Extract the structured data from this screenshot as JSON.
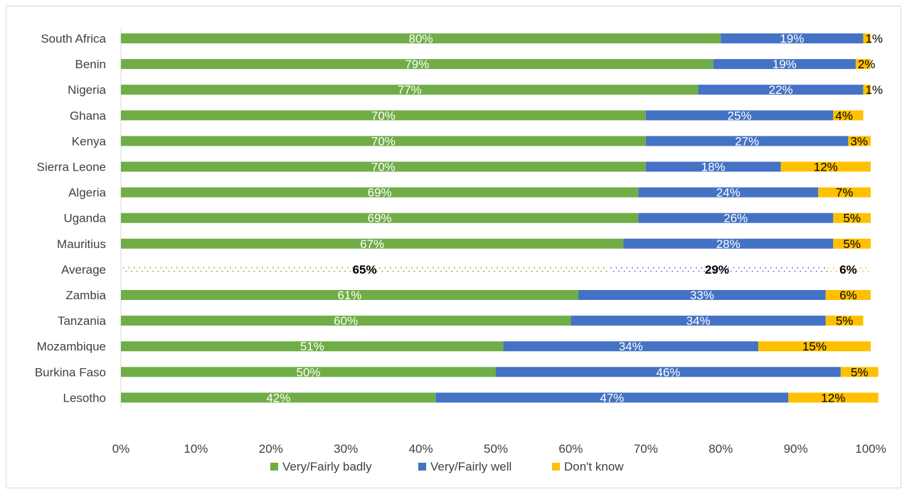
{
  "chart_data": {
    "type": "bar",
    "orientation": "horizontal",
    "stacked": true,
    "categories": [
      "South Africa",
      "Benin",
      "Nigeria",
      "Ghana",
      "Kenya",
      "Sierra Leone",
      "Algeria",
      "Uganda",
      "Mauritius",
      "Average",
      "Zambia",
      "Tanzania",
      "Mozambique",
      "Burkina Faso",
      "Lesotho"
    ],
    "series": [
      {
        "name": "Very/Fairly badly",
        "color": "#70ad47",
        "values": [
          80,
          79,
          77,
          70,
          70,
          70,
          69,
          69,
          67,
          65,
          61,
          60,
          51,
          50,
          42
        ]
      },
      {
        "name": "Very/Fairly well",
        "color": "#4472c4",
        "values": [
          19,
          19,
          22,
          25,
          27,
          18,
          24,
          26,
          28,
          29,
          33,
          34,
          34,
          46,
          47
        ]
      },
      {
        "name": "Don't know",
        "color": "#ffc000",
        "values": [
          1,
          2,
          1,
          4,
          3,
          12,
          7,
          5,
          5,
          6,
          6,
          5,
          15,
          5,
          12
        ]
      }
    ],
    "highlight_category": "Average",
    "highlight_style": "dotted",
    "xlim": [
      0,
      100
    ],
    "x_ticks": [
      "0%",
      "10%",
      "20%",
      "30%",
      "40%",
      "50%",
      "60%",
      "70%",
      "80%",
      "90%",
      "100%"
    ],
    "value_suffix": "%",
    "grid": false,
    "legend_position": "bottom"
  }
}
